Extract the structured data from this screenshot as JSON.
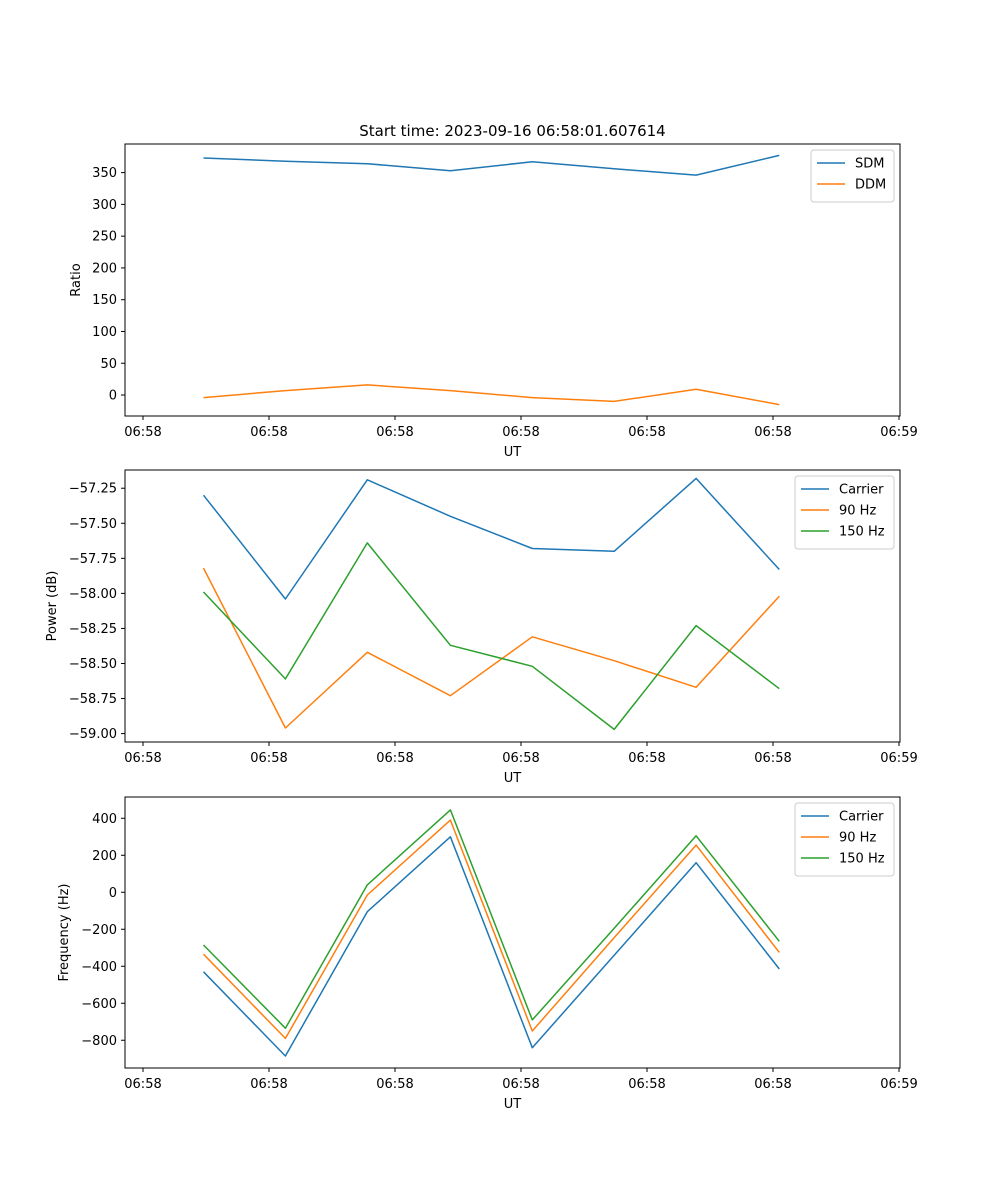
{
  "figure": {
    "title": "Start time: 2023-09-16 06:58:01.607614"
  },
  "colors": {
    "blue": "#1f77b4",
    "orange": "#ff7f0e",
    "green": "#2ca02c"
  },
  "chart_data": [
    {
      "type": "line",
      "title": "Start time: 2023-09-16 06:58:01.607614",
      "xlabel": "UT",
      "ylabel": "Ratio",
      "xlim": [
        0,
        6
      ],
      "x_ticks": [
        0,
        1,
        2,
        3,
        4,
        5,
        6
      ],
      "x_tick_labels": [
        "06:58",
        "06:58",
        "06:58",
        "06:58",
        "06:58",
        "06:58",
        "06:59"
      ],
      "x": [
        0.48,
        1.13,
        1.78,
        2.44,
        3.09,
        3.74,
        4.39,
        5.05
      ],
      "ylim": [
        -33,
        395
      ],
      "y_ticks": [
        0,
        50,
        100,
        150,
        200,
        250,
        300,
        350
      ],
      "y_tick_labels": [
        "0",
        "50",
        "100",
        "150",
        "200",
        "250",
        "300",
        "350"
      ],
      "legend_position": "top-right",
      "series": [
        {
          "name": "SDM",
          "color": "#1f77b4",
          "values": [
            373,
            368,
            364,
            353,
            367,
            356,
            346,
            377
          ]
        },
        {
          "name": "DDM",
          "color": "#ff7f0e",
          "values": [
            -4,
            7,
            16,
            7,
            -4,
            -10,
            9,
            -15
          ]
        }
      ]
    },
    {
      "type": "line",
      "title": "",
      "xlabel": "UT",
      "ylabel": "Power (dB)",
      "xlim": [
        0,
        6
      ],
      "x_ticks": [
        0,
        1,
        2,
        3,
        4,
        5,
        6
      ],
      "x_tick_labels": [
        "06:58",
        "06:58",
        "06:58",
        "06:58",
        "06:58",
        "06:58",
        "06:59"
      ],
      "x": [
        0.48,
        1.13,
        1.78,
        2.44,
        3.09,
        3.74,
        4.39,
        5.05
      ],
      "ylim": [
        -59.06,
        -57.12
      ],
      "y_ticks": [
        -59.0,
        -58.75,
        -58.5,
        -58.25,
        -58.0,
        -57.75,
        -57.5,
        -57.25
      ],
      "y_tick_labels": [
        "−59.00",
        "−58.75",
        "−58.50",
        "−58.25",
        "−58.00",
        "−57.75",
        "−57.50",
        "−57.25"
      ],
      "legend_position": "top-right",
      "series": [
        {
          "name": "Carrier",
          "color": "#1f77b4",
          "values": [
            -57.3,
            -58.04,
            -57.19,
            -57.45,
            -57.68,
            -57.7,
            -57.18,
            -57.83
          ]
        },
        {
          "name": "90 Hz",
          "color": "#ff7f0e",
          "values": [
            -57.82,
            -58.96,
            -58.42,
            -58.73,
            -58.31,
            -58.48,
            -58.67,
            -58.02
          ]
        },
        {
          "name": "150 Hz",
          "color": "#2ca02c",
          "values": [
            -57.99,
            -58.61,
            -57.64,
            -58.37,
            -58.52,
            -58.97,
            -58.23,
            -58.68
          ]
        }
      ]
    },
    {
      "type": "line",
      "title": "",
      "xlabel": "UT",
      "ylabel": "Frequency (Hz)",
      "xlim": [
        0,
        6
      ],
      "x_ticks": [
        0,
        1,
        2,
        3,
        4,
        5,
        6
      ],
      "x_tick_labels": [
        "06:58",
        "06:58",
        "06:58",
        "06:58",
        "06:58",
        "06:58",
        "06:59"
      ],
      "x": [
        0.48,
        1.13,
        1.78,
        2.44,
        3.09,
        3.74,
        4.39,
        5.05
      ],
      "ylim": [
        -950,
        515
      ],
      "y_ticks": [
        -800,
        -600,
        -400,
        -200,
        0,
        200,
        400
      ],
      "y_tick_labels": [
        "−800",
        "−600",
        "−400",
        "−200",
        "0",
        "200",
        "400"
      ],
      "legend_position": "top-right",
      "series": [
        {
          "name": "Carrier",
          "color": "#1f77b4",
          "values": [
            -430,
            -885,
            -105,
            300,
            -840,
            -340,
            160,
            -415
          ]
        },
        {
          "name": "90 Hz",
          "color": "#ff7f0e",
          "values": [
            -335,
            -790,
            -15,
            390,
            -750,
            -245,
            255,
            -325
          ]
        },
        {
          "name": "150 Hz",
          "color": "#2ca02c",
          "values": [
            -285,
            -735,
            40,
            445,
            -690,
            -195,
            305,
            -265
          ]
        }
      ]
    }
  ]
}
